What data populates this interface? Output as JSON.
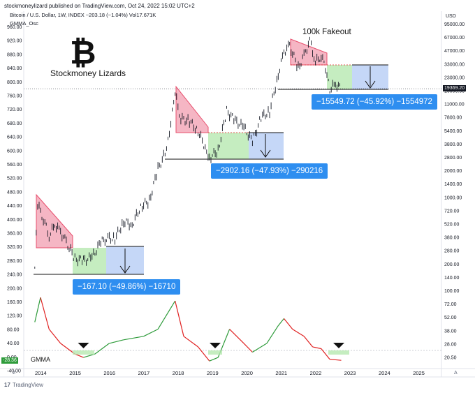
{
  "header": {
    "publisher_line": "stockmoneylizard published on TradingView.com, Oct 24, 2022 15:02 UTC+2",
    "symbol_line": "Bitcoin / U.S. Dollar, 1W, INDEX  −203.18 (−1.04%)  Vol17.671K",
    "indicator_line": "GMMA_Osc"
  },
  "branding": {
    "logo_symbol": "₿",
    "logo_name": "bitcoin-logo",
    "author_label": "Stockmoney Lizards"
  },
  "annotations": {
    "fakeout_label": "100k Fakeout",
    "box1_label": "−167.10 (−49.86%) −16710",
    "box2_label": "−2902.16 (−47.93%) −290216",
    "box3_label": "−15549.72 (−45.92%) −1554972"
  },
  "indicator": {
    "name_label": "GMMA",
    "value_badge": "-28.36"
  },
  "footer": {
    "logo_symbol": "17",
    "brand": "TradingView"
  },
  "colors": {
    "price_bars": "#131722",
    "triangle": "#f19db0",
    "triangle_edge": "#e8506e",
    "accumulation": "#b7e8b0",
    "projection": "#b6cdf5",
    "label_box": "#2e8ef0",
    "gmma_up": "#2e9b3a",
    "gmma_down": "#e02020",
    "last_price_badge": "#131722"
  },
  "chart_data": [
    {
      "type": "line",
      "subtype": "candlestick",
      "title": "",
      "x_tick_labels": [
        "2014",
        "2015",
        "2016",
        "2017",
        "2018",
        "2019",
        "2020",
        "2021",
        "2022",
        "2023",
        "2024",
        "2025"
      ],
      "y_left_ticks": [
        "960.00",
        "920.00",
        "880.00",
        "840.00",
        "800.00",
        "760.00",
        "720.00",
        "680.00",
        "640.00",
        "600.00",
        "560.00",
        "520.00",
        "480.00",
        "440.00",
        "400.00",
        "360.00",
        "320.00",
        "280.00",
        "240.00",
        "200.00",
        "160.00",
        "120.00",
        "80.00",
        "40.00",
        "0.00",
        "-40.00"
      ],
      "y_right_ticks": [
        "95000.00",
        "67000.00",
        "47000.00",
        "33000.00",
        "23000.00",
        "16000.00",
        "11000.00",
        "7800.00",
        "5400.00",
        "3800.00",
        "2800.00",
        "2000.00",
        "1400.00",
        "1000.00",
        "720.00",
        "520.00",
        "380.00",
        "280.00",
        "200.00",
        "140.00",
        "100.00",
        "72.00",
        "52.00",
        "38.00",
        "28.00",
        "20.50"
      ],
      "y_right_unit": "USD",
      "y_scale": "log",
      "last_price": "19369.20",
      "series": [
        {
          "x": [
            "2013-11",
            "2013-12",
            "2014-02",
            "2014-04",
            "2014-06",
            "2014-08",
            "2014-10",
            "2015-01",
            "2015-04",
            "2015-07",
            "2015-10",
            "2015-12",
            "2016-03",
            "2016-06",
            "2016-09",
            "2016-12",
            "2017-03",
            "2017-06",
            "2017-09",
            "2017-12",
            "2018-02",
            "2018-05",
            "2018-08",
            "2018-11",
            "2018-12",
            "2019-03",
            "2019-06",
            "2019-09",
            "2019-12",
            "2020-03",
            "2020-06",
            "2020-09",
            "2020-12",
            "2021-02",
            "2021-04",
            "2021-07",
            "2021-09",
            "2021-11",
            "2022-01",
            "2022-03",
            "2022-05",
            "2022-06",
            "2022-08",
            "2022-10"
          ],
          "values": [
            200,
            1000,
            700,
            450,
            600,
            500,
            380,
            250,
            240,
            260,
            380,
            430,
            420,
            650,
            600,
            950,
            1100,
            2500,
            4000,
            17000,
            9000,
            8500,
            6500,
            4000,
            3300,
            4000,
            11000,
            8500,
            7200,
            5000,
            9300,
            10800,
            28000,
            50000,
            58000,
            33000,
            45000,
            67000,
            38000,
            45000,
            30000,
            19000,
            22000,
            19369
          ]
        }
      ]
    },
    {
      "type": "line",
      "title": "GMMA_Osc",
      "y_left_ticks": [
        "160.00",
        "120.00",
        "80.00",
        "40.00",
        "0.00",
        "-40.00"
      ],
      "series": [
        {
          "name": "GMMA",
          "x": [
            "2013-11",
            "2014-01",
            "2014-04",
            "2014-08",
            "2015-01",
            "2015-04",
            "2015-08",
            "2016-01",
            "2016-06",
            "2017-01",
            "2017-06",
            "2017-12",
            "2018-03",
            "2018-08",
            "2018-12",
            "2019-03",
            "2019-07",
            "2019-12",
            "2020-03",
            "2020-08",
            "2020-12",
            "2021-02",
            "2021-05",
            "2021-09",
            "2021-12",
            "2022-03",
            "2022-06",
            "2022-10"
          ],
          "values": [
            80,
            150,
            60,
            20,
            -10,
            -20,
            -10,
            20,
            30,
            40,
            60,
            140,
            40,
            10,
            -30,
            -20,
            60,
            20,
            -5,
            20,
            70,
            90,
            60,
            40,
            10,
            5,
            -25,
            -28
          ]
        }
      ]
    }
  ]
}
